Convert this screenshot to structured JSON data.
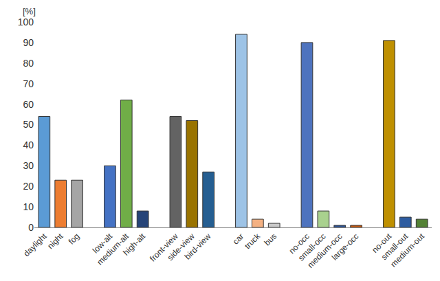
{
  "chart_data": {
    "type": "bar",
    "ylabel": "[%]",
    "categories": [
      "daylight",
      "night",
      "fog",
      null,
      "low-alt",
      "medium-alt",
      "high-alt",
      null,
      "front-view",
      "side-view",
      "bird-view",
      null,
      "car",
      "truck",
      "bus",
      null,
      "no-occ",
      "small-occ",
      "medium-occ",
      "large-occ",
      null,
      "no-out",
      "small-out",
      "medium-out"
    ],
    "values": [
      54,
      23,
      23,
      null,
      30,
      62,
      8,
      null,
      54,
      52,
      27,
      null,
      94,
      4,
      2,
      null,
      90,
      8,
      1,
      1,
      null,
      91,
      5,
      4
    ],
    "colors": [
      "#5b9bd5",
      "#ed7d31",
      "#a5a5a5",
      null,
      "#4472c4",
      "#70ad47",
      "#264478",
      null,
      "#636363",
      "#997300",
      "#255e91",
      null,
      "#9dc3e6",
      "#f4b183",
      "#c9c9c9",
      null,
      "#4e73be",
      "#a9d18e",
      "#2f5597",
      "#c55a11",
      null,
      "#bf9000",
      "#2e5ca0",
      "#548235"
    ],
    "ylim": [
      0,
      100
    ],
    "yticks": [
      0,
      10,
      20,
      30,
      40,
      50,
      60,
      70,
      80,
      90,
      100
    ],
    "grid": false
  }
}
